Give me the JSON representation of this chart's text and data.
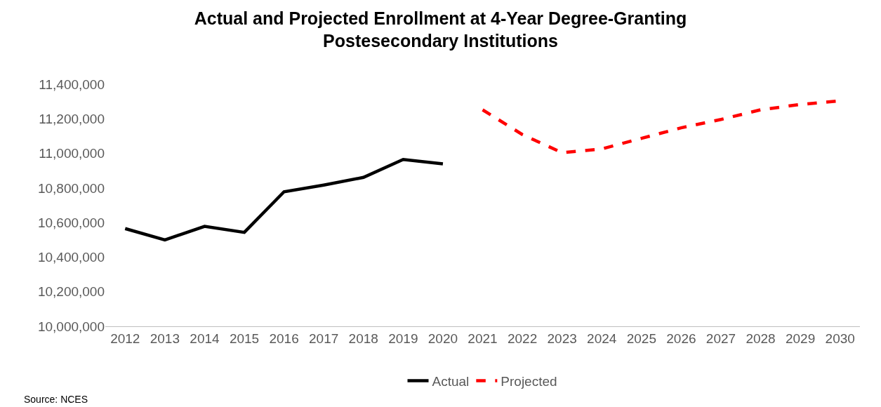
{
  "chart_data": {
    "type": "line",
    "title": "Actual and Projected Enrollment at 4-Year Degree-Granting\nPostesecondary Institutions",
    "categories": [
      "2012",
      "2013",
      "2014",
      "2015",
      "2016",
      "2017",
      "2018",
      "2019",
      "2020",
      "2021",
      "2022",
      "2023",
      "2024",
      "2025",
      "2026",
      "2027",
      "2028",
      "2029",
      "2030"
    ],
    "series": [
      {
        "name": "Actual",
        "color": "#000000",
        "line_style": "solid",
        "values": [
          10565000,
          10500000,
          10578000,
          10543000,
          10778000,
          10817000,
          10861000,
          10965000,
          10939000,
          null,
          null,
          null,
          null,
          null,
          null,
          null,
          null,
          null,
          null
        ]
      },
      {
        "name": "Projected",
        "color": "#ff0000",
        "line_style": "dashed",
        "values": [
          null,
          null,
          null,
          null,
          null,
          null,
          null,
          null,
          null,
          11252000,
          11109000,
          11004000,
          11026000,
          11087000,
          11148000,
          11196000,
          11252000,
          11283000,
          11304000
        ]
      }
    ],
    "ylim": [
      10000000,
      11400000
    ],
    "yticks": [
      {
        "value": 10000000,
        "label": "10,000,000"
      },
      {
        "value": 10200000,
        "label": "10,200,000"
      },
      {
        "value": 10400000,
        "label": "10,400,000"
      },
      {
        "value": 10600000,
        "label": "10,600,000"
      },
      {
        "value": 10800000,
        "label": "10,800,000"
      },
      {
        "value": 11000000,
        "label": "11,000,000"
      },
      {
        "value": 11200000,
        "label": "11,200,000"
      },
      {
        "value": 11400000,
        "label": "11,400,000"
      }
    ],
    "grid": false,
    "legend": "bottom",
    "marker": "none",
    "annotations": [
      "Source: NCES"
    ]
  }
}
